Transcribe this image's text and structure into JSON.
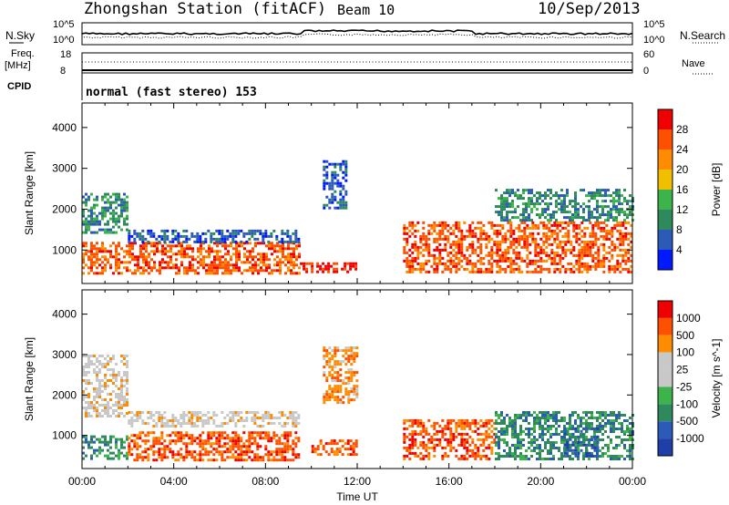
{
  "header": {
    "station": "Zhongshan Station (fitACF)",
    "beam": "Beam 10",
    "date": "10/Sep/2013"
  },
  "panel_labels": {
    "nsky": "N.Sky",
    "nsky_top": "10^5",
    "nsky_bottom": "10^0",
    "nsearch": "N.Search",
    "nsearch_top": "10^5",
    "nsearch_bottom": "10^0",
    "freq_label": "Freq.",
    "freq_unit": "[MHz]",
    "freq_top": "18",
    "freq_bottom": "8",
    "nave": "Nave",
    "nave_top": "60",
    "nave_bottom": "0",
    "cpid": "CPID",
    "cpid_text": "normal (fast stereo) 153"
  },
  "x_axis": {
    "ticks": [
      "00:00",
      "04:00",
      "08:00",
      "12:00",
      "16:00",
      "20:00",
      "00:00"
    ],
    "label": "Time UT"
  },
  "colors": {
    "power": [
      "#0019ff",
      "#2b5ab8",
      "#2e8a5c",
      "#3cb44b",
      "#f0c000",
      "#ff8c00",
      "#ff5000",
      "#f00000"
    ],
    "velocity": [
      "#f00000",
      "#ff5000",
      "#ff8c00",
      "#c8c8c8",
      "#c8c8c8",
      "#3cb44b",
      "#2e8a5c",
      "#2b5ab8",
      "#1f3fa8"
    ]
  },
  "chart_data": [
    {
      "type": "heatmap",
      "name": "power",
      "ylabel": "Slant Range [km]",
      "yticks": [
        "1000",
        "2000",
        "3000",
        "4000"
      ],
      "ylim": [
        180,
        4600
      ],
      "xlim": [
        0,
        24
      ],
      "colorbar_label": "Power [dB]",
      "colorbar_ticks": [
        "4",
        "8",
        "12",
        "16",
        "20",
        "24",
        "28"
      ],
      "regions": [
        {
          "t": [
            0,
            9.5
          ],
          "r": [
            400,
            1200
          ],
          "level": 6
        },
        {
          "t": [
            0,
            2
          ],
          "r": [
            1400,
            2400
          ],
          "level": 2
        },
        {
          "t": [
            2,
            9.5
          ],
          "r": [
            1200,
            1500
          ],
          "level": 1
        },
        {
          "t": [
            9.5,
            12
          ],
          "r": [
            450,
            700
          ],
          "level": 7
        },
        {
          "t": [
            10.5,
            11.5
          ],
          "r": [
            2000,
            3200
          ],
          "level": 1
        },
        {
          "t": [
            14,
            24
          ],
          "r": [
            450,
            1700
          ],
          "level": 6
        },
        {
          "t": [
            18,
            24
          ],
          "r": [
            1700,
            2500
          ],
          "level": 2
        }
      ]
    },
    {
      "type": "heatmap",
      "name": "velocity",
      "ylabel": "Slant Range [km]",
      "yticks": [
        "1000",
        "2000",
        "3000",
        "4000"
      ],
      "ylim": [
        180,
        4600
      ],
      "xlim": [
        0,
        24
      ],
      "colorbar_label": "Velocity [m s^-1]",
      "colorbar_ticks": [
        "1000",
        "500",
        "100",
        "25",
        "-25",
        "-100",
        "-500",
        "-1000"
      ],
      "regions": [
        {
          "t": [
            0,
            2
          ],
          "r": [
            400,
            1000
          ],
          "level": 6
        },
        {
          "t": [
            0,
            2
          ],
          "r": [
            1500,
            3000
          ],
          "level": 3
        },
        {
          "t": [
            2,
            9.5
          ],
          "r": [
            1200,
            1600
          ],
          "level": 3
        },
        {
          "t": [
            2,
            9.5
          ],
          "r": [
            400,
            1100
          ],
          "level": 1
        },
        {
          "t": [
            10,
            12
          ],
          "r": [
            500,
            900
          ],
          "level": 1
        },
        {
          "t": [
            10.5,
            12
          ],
          "r": [
            1800,
            3200
          ],
          "level": 2
        },
        {
          "t": [
            14,
            18
          ],
          "r": [
            400,
            1400
          ],
          "level": 1
        },
        {
          "t": [
            18,
            24
          ],
          "r": [
            400,
            1600
          ],
          "level": 6
        },
        {
          "t": [
            21,
            22.5
          ],
          "r": [
            500,
            1200
          ],
          "level": 7
        }
      ]
    }
  ]
}
